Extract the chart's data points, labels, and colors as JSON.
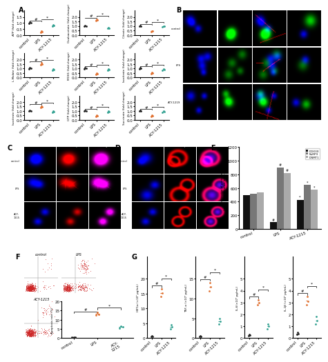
{
  "panel_A": {
    "plots": [
      {
        "ylabel": "ATP (fold change)",
        "ylim": [
          0,
          1.5
        ],
        "yticks": [
          0.0,
          0.5,
          1.0,
          1.5
        ],
        "control_vals": [
          0.95,
          1.05,
          1.0
        ],
        "lps_vals": [
          0.22,
          0.3,
          0.26
        ],
        "acy_vals": [
          0.72,
          0.82,
          0.77
        ],
        "control_color": "#222222",
        "lps_color": "#E07030",
        "acy_color": "#30A090"
      },
      {
        "ylabel": "Oxaloacetate (fold change)",
        "ylim": [
          0,
          2.0
        ],
        "yticks": [
          0.0,
          0.5,
          1.0,
          1.5,
          2.0
        ],
        "control_vals": [
          0.95,
          1.05,
          1.0
        ],
        "lps_vals": [
          1.55,
          1.75,
          1.65
        ],
        "acy_vals": [
          0.72,
          0.82,
          0.77
        ],
        "control_color": "#222222",
        "lps_color": "#E07030",
        "acy_color": "#30A090"
      },
      {
        "ylabel": "Citrate (fold change)",
        "ylim": [
          0,
          2.0
        ],
        "yticks": [
          0.0,
          0.5,
          1.0,
          1.5,
          2.0
        ],
        "control_vals": [
          0.95,
          1.05,
          1.0
        ],
        "lps_vals": [
          0.35,
          0.45,
          0.4
        ],
        "acy_vals": [
          0.9,
          1.0,
          0.95
        ],
        "control_color": "#222222",
        "lps_color": "#E07030",
        "acy_color": "#30A090"
      },
      {
        "ylabel": "L-Malate (fold change)",
        "ylim": [
          0,
          2.0
        ],
        "yticks": [
          0.0,
          0.5,
          1.0,
          1.5,
          2.0
        ],
        "control_vals": [
          0.95,
          1.05,
          1.0
        ],
        "lps_vals": [
          1.4,
          1.6,
          1.5
        ],
        "acy_vals": [
          0.8,
          0.95,
          0.87
        ],
        "control_color": "#222222",
        "lps_color": "#E07030",
        "acy_color": "#30A090"
      },
      {
        "ylabel": "MDH1 (fold change)",
        "ylim": [
          0,
          2.0
        ],
        "yticks": [
          0.0,
          0.5,
          1.0,
          1.5,
          2.0
        ],
        "control_vals": [
          0.95,
          1.05,
          1.0
        ],
        "lps_vals": [
          0.35,
          0.5,
          0.42
        ],
        "acy_vals": [
          0.8,
          0.95,
          0.87
        ],
        "control_color": "#222222",
        "lps_color": "#E07030",
        "acy_color": "#30A090"
      },
      {
        "ylabel": "Isocitrate (fold change)",
        "ylim": [
          0,
          2.0
        ],
        "yticks": [
          0.0,
          0.5,
          1.0,
          1.5,
          2.0
        ],
        "control_vals": [
          0.95,
          1.05,
          1.0
        ],
        "lps_vals": [
          0.4,
          0.55,
          0.47
        ],
        "acy_vals": [
          0.8,
          0.95,
          0.87
        ],
        "control_color": "#222222",
        "lps_color": "#E07030",
        "acy_color": "#30A090"
      },
      {
        "ylabel": "Isocitrate (fold change)",
        "ylim": [
          0,
          2.0
        ],
        "yticks": [
          0.0,
          0.5,
          1.0,
          1.5,
          2.0
        ],
        "control_vals": [
          0.95,
          1.05,
          1.0
        ],
        "lps_vals": [
          1.35,
          1.55,
          1.45
        ],
        "acy_vals": [
          0.8,
          0.95,
          0.87
        ],
        "control_color": "#222222",
        "lps_color": "#E07030",
        "acy_color": "#30A090"
      },
      {
        "ylabel": "GTP (fold change)",
        "ylim": [
          0,
          2.0
        ],
        "yticks": [
          0.0,
          0.5,
          1.0,
          1.5,
          2.0
        ],
        "control_vals": [
          0.95,
          1.05,
          1.0
        ],
        "lps_vals": [
          0.35,
          0.5,
          0.42
        ],
        "acy_vals": [
          0.8,
          0.95,
          0.87
        ],
        "control_color": "#222222",
        "lps_color": "#E07030",
        "acy_color": "#30A090"
      },
      {
        "ylabel": "Succinate (fold change)",
        "ylim": [
          0,
          2.0
        ],
        "yticks": [
          0.0,
          0.5,
          1.0,
          1.5,
          2.0
        ],
        "control_vals": [
          0.95,
          1.05,
          1.0
        ],
        "lps_vals": [
          0.35,
          0.55,
          0.45
        ],
        "acy_vals": [
          0.8,
          0.95,
          0.87
        ],
        "control_color": "#222222",
        "lps_color": "#E07030",
        "acy_color": "#30A090"
      }
    ],
    "xlabel_labels": [
      "control",
      "LPS",
      "ACY-1215"
    ]
  },
  "panel_E": {
    "categories": [
      "control",
      "LPS",
      "ACY-1215"
    ],
    "ddx3x": [
      500,
      100,
      430
    ],
    "nlrp3": [
      520,
      900,
      650
    ],
    "dnmt1": [
      540,
      820,
      580
    ],
    "ddx3x_color": "#111111",
    "nlrp3_color": "#777777",
    "dnmt1_color": "#AAAAAA",
    "ylabel": "Expression of proteins\n(mean Fluorescence Intensity)",
    "ylim": [
      0,
      1200
    ],
    "yticks": [
      0,
      200,
      400,
      600,
      800,
      1000,
      1200
    ]
  },
  "panel_F": {
    "apoptosis_control": [
      0.4,
      0.6,
      0.5
    ],
    "apoptosis_lps": [
      12.5,
      14.0,
      13.0
    ],
    "apoptosis_acy": [
      5.5,
      6.5,
      6.0
    ],
    "control_color": "#222222",
    "lps_color": "#E07030",
    "acy_color": "#30A090",
    "ylabel": "Apoptosis rate (%)",
    "ylim": [
      0,
      20
    ]
  },
  "panel_G": [
    {
      "ylabel": "HIF1α (×10² pg/mL)",
      "ylim": [
        0,
        20
      ],
      "yticks": [
        0,
        5,
        10,
        15,
        20
      ],
      "control_vals": [
        0.5,
        0.8,
        0.6
      ],
      "lps_vals": [
        14.0,
        16.5,
        15.2
      ],
      "acy_vals": [
        3.0,
        4.5,
        3.8
      ],
      "control_color": "#222222",
      "lps_color": "#E07030",
      "acy_color": "#30A090"
    },
    {
      "ylabel": "TNF-α (×10² pg/mL)",
      "ylim": [
        0,
        15
      ],
      "yticks": [
        0,
        5,
        10,
        15
      ],
      "control_vals": [
        0.4,
        0.6,
        0.5
      ],
      "lps_vals": [
        12.0,
        14.0,
        13.0
      ],
      "acy_vals": [
        3.5,
        5.0,
        4.2
      ],
      "control_color": "#222222",
      "lps_color": "#E07030",
      "acy_color": "#30A090"
    },
    {
      "ylabel": "IL-6(×10² pg/mL)",
      "ylim": [
        0,
        5
      ],
      "yticks": [
        0,
        1,
        2,
        3,
        4,
        5
      ],
      "control_vals": [
        0.2,
        0.3,
        0.25
      ],
      "lps_vals": [
        2.8,
        3.2,
        3.0
      ],
      "acy_vals": [
        0.8,
        1.2,
        1.0
      ],
      "control_color": "#222222",
      "lps_color": "#E07030",
      "acy_color": "#30A090"
    },
    {
      "ylabel": "IL-1β (×10² pg/mL)",
      "ylim": [
        0,
        5
      ],
      "yticks": [
        0,
        1,
        2,
        3,
        4,
        5
      ],
      "control_vals": [
        0.3,
        0.5,
        0.4
      ],
      "lps_vals": [
        2.8,
        3.5,
        3.1
      ],
      "acy_vals": [
        1.2,
        1.8,
        1.5
      ],
      "control_color": "#222222",
      "lps_color": "#E07030",
      "acy_color": "#30A090"
    }
  ],
  "bg_color": "#FFFFFF",
  "panel_label_fontsize": 7,
  "tick_fontsize": 4,
  "label_fontsize": 4
}
